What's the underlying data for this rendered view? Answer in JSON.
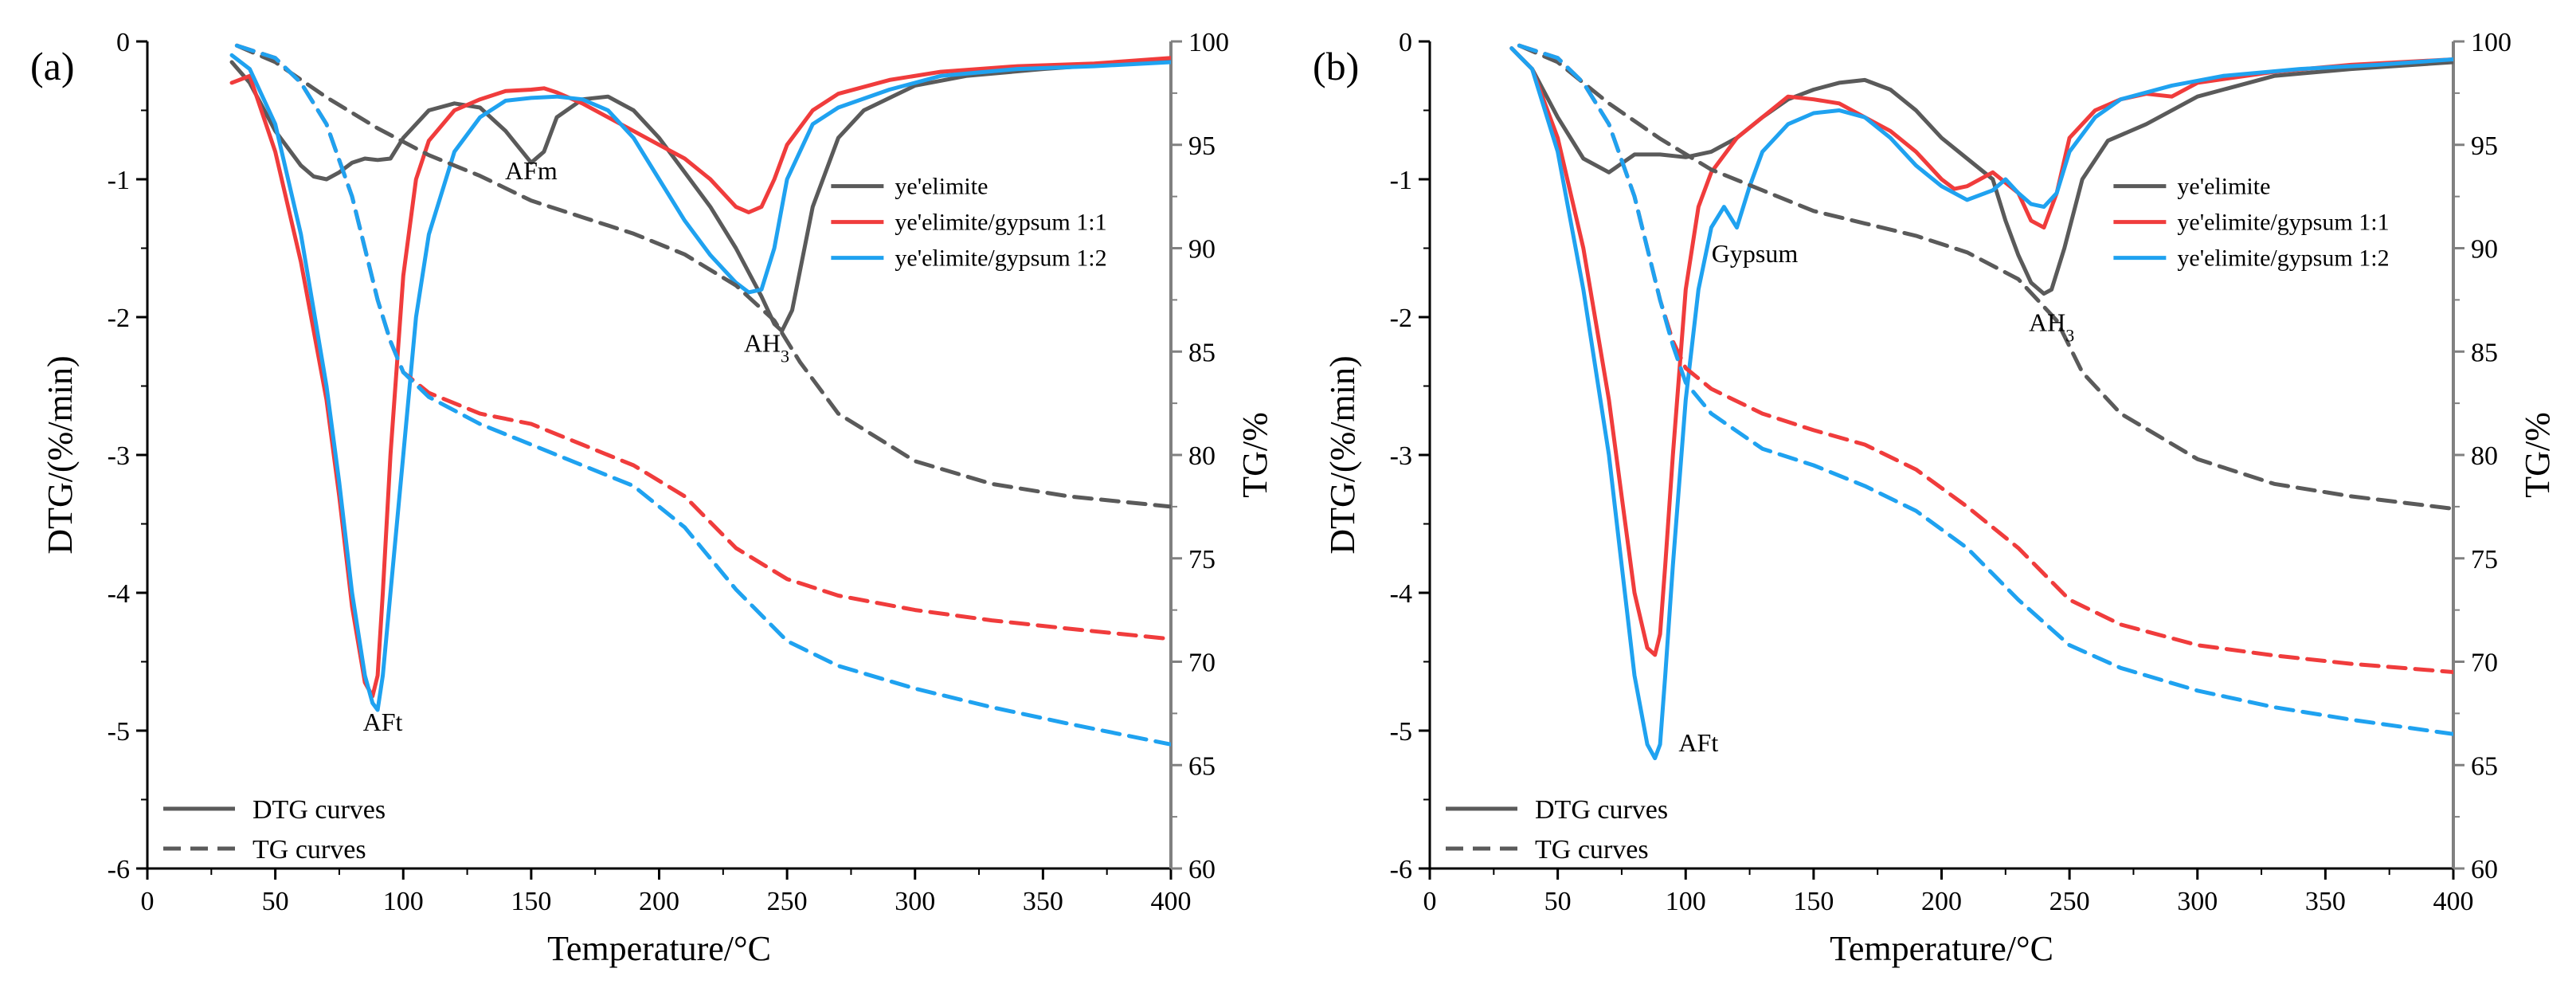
{
  "colors": {
    "ye": "#5a5a5a",
    "g11": "#f03c3c",
    "g12": "#1fa2f0"
  },
  "chart_data": [
    {
      "type": "line",
      "panel_label": "(a)",
      "xlabel": "Temperature/°C",
      "ylabel": "DTG/(%/min)",
      "y2label": "TG/%",
      "xlim": [
        0,
        400
      ],
      "ylim": [
        -6,
        0
      ],
      "y2lim": [
        60,
        100
      ],
      "xticks": [
        "0",
        "50",
        "100",
        "150",
        "200",
        "250",
        "300",
        "350",
        "400"
      ],
      "yticks": [
        "0",
        "-1",
        "-2",
        "-3",
        "-4",
        "-5",
        "-6"
      ],
      "y2ticks": [
        "100",
        "95",
        "90",
        "85",
        "80",
        "75",
        "70",
        "65",
        "60"
      ],
      "legend_series": [
        "ye'elimite",
        "ye'elimite/gypsum 1:1",
        "ye'elimite/gypsum 1:2"
      ],
      "legend_types": [
        "DTG curves",
        "TG curves"
      ],
      "annotations": [
        {
          "text": "AFt",
          "x": 92,
          "y": -5.0
        },
        {
          "text": "AFm",
          "x": 150,
          "y": -1.0
        },
        {
          "text": "AH",
          "sub": "3",
          "x": 242,
          "y": -2.25
        }
      ],
      "series": [
        {
          "name": "ye'elimite",
          "kind": "DTG",
          "axis": "left",
          "color_key": "ye",
          "x": [
            33,
            40,
            50,
            60,
            65,
            70,
            75,
            80,
            85,
            90,
            95,
            100,
            110,
            120,
            130,
            140,
            150,
            155,
            160,
            170,
            180,
            190,
            200,
            210,
            220,
            230,
            240,
            245,
            248,
            252,
            260,
            270,
            280,
            300,
            320,
            350,
            380,
            400
          ],
          "y": [
            -0.15,
            -0.3,
            -0.65,
            -0.9,
            -0.98,
            -1.0,
            -0.95,
            -0.88,
            -0.85,
            -0.86,
            -0.85,
            -0.7,
            -0.5,
            -0.45,
            -0.48,
            -0.65,
            -0.88,
            -0.8,
            -0.55,
            -0.42,
            -0.4,
            -0.5,
            -0.7,
            -0.95,
            -1.2,
            -1.5,
            -1.85,
            -2.05,
            -2.1,
            -1.95,
            -1.2,
            -0.7,
            -0.5,
            -0.32,
            -0.25,
            -0.2,
            -0.16,
            -0.13
          ]
        },
        {
          "name": "ye'elimite/gypsum 1:1",
          "kind": "DTG",
          "axis": "left",
          "color_key": "g11",
          "x": [
            33,
            40,
            50,
            60,
            70,
            75,
            80,
            85,
            88,
            90,
            92,
            95,
            100,
            105,
            110,
            120,
            130,
            140,
            150,
            155,
            160,
            170,
            180,
            190,
            200,
            210,
            220,
            230,
            235,
            240,
            245,
            250,
            260,
            270,
            290,
            310,
            340,
            370,
            400
          ],
          "y": [
            -0.3,
            -0.25,
            -0.8,
            -1.6,
            -2.6,
            -3.3,
            -4.1,
            -4.65,
            -4.75,
            -4.6,
            -4.0,
            -3.0,
            -1.7,
            -1.0,
            -0.72,
            -0.5,
            -0.42,
            -0.36,
            -0.35,
            -0.34,
            -0.37,
            -0.45,
            -0.55,
            -0.65,
            -0.75,
            -0.85,
            -1.0,
            -1.2,
            -1.24,
            -1.2,
            -1.0,
            -0.75,
            -0.5,
            -0.38,
            -0.28,
            -0.22,
            -0.18,
            -0.16,
            -0.12
          ]
        },
        {
          "name": "ye'elimite/gypsum 1:2",
          "kind": "DTG",
          "axis": "left",
          "color_key": "g12",
          "x": [
            33,
            40,
            50,
            60,
            70,
            75,
            80,
            85,
            88,
            90,
            92,
            95,
            100,
            105,
            110,
            120,
            130,
            140,
            150,
            160,
            170,
            180,
            190,
            200,
            210,
            220,
            230,
            235,
            240,
            245,
            250,
            260,
            270,
            290,
            310,
            340,
            370,
            400
          ],
          "y": [
            -0.1,
            -0.2,
            -0.6,
            -1.4,
            -2.5,
            -3.2,
            -4.0,
            -4.6,
            -4.8,
            -4.85,
            -4.6,
            -4.0,
            -3.0,
            -2.0,
            -1.4,
            -0.8,
            -0.55,
            -0.43,
            -0.41,
            -0.4,
            -0.42,
            -0.5,
            -0.7,
            -1.0,
            -1.3,
            -1.55,
            -1.75,
            -1.82,
            -1.8,
            -1.5,
            -1.0,
            -0.6,
            -0.48,
            -0.35,
            -0.25,
            -0.2,
            -0.18,
            -0.15
          ]
        },
        {
          "name": "ye'elimite",
          "kind": "TG",
          "axis": "right",
          "color_key": "ye",
          "x": [
            35,
            50,
            70,
            90,
            110,
            130,
            150,
            170,
            190,
            210,
            230,
            245,
            255,
            270,
            300,
            330,
            360,
            400
          ],
          "y": [
            99.8,
            99,
            97.3,
            95.8,
            94.5,
            93.5,
            92.3,
            91.5,
            90.7,
            89.7,
            88.2,
            86.5,
            84.5,
            82,
            79.7,
            78.6,
            78,
            77.5
          ]
        },
        {
          "name": "ye'elimite/gypsum 1:1",
          "kind": "TG",
          "axis": "right",
          "color_key": "g11",
          "x": [
            35,
            50,
            60,
            70,
            80,
            85,
            90,
            95,
            100,
            110,
            130,
            150,
            170,
            190,
            210,
            230,
            250,
            270,
            300,
            330,
            360,
            400
          ],
          "y": [
            99.8,
            99.2,
            98,
            96,
            92.5,
            90,
            87.5,
            85.5,
            84,
            83,
            82,
            81.5,
            80.5,
            79.5,
            78,
            75.5,
            74,
            73.2,
            72.5,
            72,
            71.6,
            71.1
          ]
        },
        {
          "name": "ye'elimite/gypsum 1:2",
          "kind": "TG",
          "axis": "right",
          "color_key": "g12",
          "x": [
            35,
            50,
            60,
            70,
            80,
            85,
            90,
            95,
            100,
            110,
            130,
            150,
            170,
            190,
            210,
            230,
            250,
            270,
            300,
            330,
            360,
            400
          ],
          "y": [
            99.8,
            99.2,
            98,
            96,
            92.5,
            90,
            87.5,
            85.5,
            84,
            82.8,
            81.5,
            80.5,
            79.5,
            78.5,
            76.5,
            73.5,
            71,
            69.8,
            68.7,
            67.8,
            67,
            66
          ]
        }
      ]
    },
    {
      "type": "line",
      "panel_label": "(b)",
      "xlabel": "Temperature/°C",
      "ylabel": "DTG/(%/min)",
      "y2label": "TG/%",
      "xlim": [
        0,
        400
      ],
      "ylim": [
        -6,
        0
      ],
      "y2lim": [
        60,
        100
      ],
      "xticks": [
        "0",
        "50",
        "100",
        "150",
        "200",
        "250",
        "300",
        "350",
        "400"
      ],
      "yticks": [
        "0",
        "-1",
        "-2",
        "-3",
        "-4",
        "-5",
        "-6"
      ],
      "y2ticks": [
        "100",
        "95",
        "90",
        "85",
        "80",
        "75",
        "70",
        "65",
        "60"
      ],
      "legend_series": [
        "ye'elimite",
        "ye'elimite/gypsum 1:1",
        "ye'elimite/gypsum 1:2"
      ],
      "legend_types": [
        "DTG curves",
        "TG curves"
      ],
      "annotations": [
        {
          "text": "AFt",
          "x": 105,
          "y": -5.15
        },
        {
          "text": "Gypsum",
          "x": 127,
          "y": -1.6
        },
        {
          "text": "AH",
          "sub": "3",
          "x": 243,
          "y": -2.1
        }
      ],
      "series": [
        {
          "name": "ye'elimite",
          "kind": "DTG",
          "axis": "left",
          "color_key": "ye",
          "x": [
            32,
            40,
            50,
            60,
            70,
            80,
            90,
            100,
            110,
            120,
            130,
            140,
            150,
            160,
            170,
            180,
            190,
            200,
            210,
            220,
            225,
            230,
            235,
            240,
            243,
            248,
            255,
            265,
            280,
            300,
            330,
            360,
            400
          ],
          "y": [
            -0.05,
            -0.2,
            -0.55,
            -0.85,
            -0.95,
            -0.82,
            -0.82,
            -0.84,
            -0.8,
            -0.7,
            -0.55,
            -0.42,
            -0.35,
            -0.3,
            -0.28,
            -0.35,
            -0.5,
            -0.7,
            -0.85,
            -1.0,
            -1.3,
            -1.55,
            -1.75,
            -1.83,
            -1.8,
            -1.5,
            -1.0,
            -0.72,
            -0.6,
            -0.4,
            -0.25,
            -0.2,
            -0.15
          ]
        },
        {
          "name": "ye'elimite/gypsum 1:1",
          "kind": "DTG",
          "axis": "left",
          "color_key": "g11",
          "x": [
            32,
            40,
            50,
            60,
            70,
            75,
            80,
            85,
            88,
            90,
            92,
            95,
            100,
            105,
            110,
            120,
            130,
            140,
            150,
            160,
            170,
            180,
            190,
            200,
            205,
            210,
            220,
            230,
            235,
            240,
            245,
            250,
            260,
            270,
            280,
            290,
            300,
            330,
            360,
            400
          ],
          "y": [
            -0.05,
            -0.2,
            -0.7,
            -1.5,
            -2.6,
            -3.3,
            -4.0,
            -4.4,
            -4.45,
            -4.3,
            -3.8,
            -3.0,
            -1.8,
            -1.2,
            -0.95,
            -0.7,
            -0.55,
            -0.4,
            -0.42,
            -0.45,
            -0.55,
            -0.65,
            -0.8,
            -1.0,
            -1.07,
            -1.05,
            -0.95,
            -1.1,
            -1.3,
            -1.35,
            -1.1,
            -0.7,
            -0.5,
            -0.42,
            -0.38,
            -0.4,
            -0.3,
            -0.22,
            -0.17,
            -0.13
          ]
        },
        {
          "name": "ye'elimite/gypsum 1:2",
          "kind": "DTG",
          "axis": "left",
          "color_key": "g12",
          "x": [
            32,
            40,
            50,
            60,
            70,
            75,
            80,
            85,
            88,
            90,
            92,
            95,
            100,
            105,
            110,
            115,
            120,
            125,
            130,
            140,
            150,
            160,
            170,
            180,
            190,
            200,
            210,
            220,
            225,
            230,
            235,
            240,
            245,
            250,
            260,
            270,
            290,
            310,
            340,
            370,
            400
          ],
          "y": [
            -0.05,
            -0.2,
            -0.8,
            -1.8,
            -3.0,
            -3.8,
            -4.6,
            -5.1,
            -5.2,
            -5.1,
            -4.6,
            -3.8,
            -2.6,
            -1.8,
            -1.35,
            -1.2,
            -1.35,
            -1.05,
            -0.8,
            -0.6,
            -0.52,
            -0.5,
            -0.55,
            -0.7,
            -0.9,
            -1.05,
            -1.15,
            -1.08,
            -1.0,
            -1.1,
            -1.18,
            -1.2,
            -1.1,
            -0.8,
            -0.55,
            -0.42,
            -0.32,
            -0.25,
            -0.2,
            -0.17,
            -0.13
          ]
        },
        {
          "name": "ye'elimite",
          "kind": "TG",
          "axis": "right",
          "color_key": "ye",
          "x": [
            35,
            50,
            70,
            90,
            110,
            130,
            150,
            170,
            190,
            210,
            230,
            245,
            255,
            270,
            300,
            330,
            360,
            400
          ],
          "y": [
            99.8,
            99,
            97,
            95.3,
            93.8,
            92.8,
            91.8,
            91.2,
            90.6,
            89.8,
            88.5,
            86.5,
            84,
            82,
            79.8,
            78.6,
            78,
            77.4
          ]
        },
        {
          "name": "ye'elimite/gypsum 1:1",
          "kind": "TG",
          "axis": "right",
          "color_key": "g11",
          "x": [
            35,
            50,
            60,
            70,
            80,
            85,
            90,
            95,
            100,
            110,
            130,
            150,
            170,
            190,
            210,
            230,
            250,
            270,
            300,
            330,
            360,
            400
          ],
          "y": [
            99.8,
            99.2,
            98,
            96,
            92.5,
            90,
            87.5,
            85.5,
            84.2,
            83.2,
            82,
            81.2,
            80.5,
            79.3,
            77.5,
            75.5,
            73,
            71.8,
            70.8,
            70.3,
            69.9,
            69.5
          ]
        },
        {
          "name": "ye'elimite/gypsum 1:2",
          "kind": "TG",
          "axis": "right",
          "color_key": "g12",
          "x": [
            35,
            50,
            60,
            70,
            80,
            85,
            90,
            95,
            100,
            110,
            130,
            150,
            170,
            190,
            210,
            230,
            250,
            270,
            300,
            330,
            360,
            400
          ],
          "y": [
            99.8,
            99.2,
            98,
            96,
            92.5,
            90,
            87.5,
            85.3,
            83.5,
            82,
            80.3,
            79.5,
            78.5,
            77.3,
            75.5,
            73,
            70.8,
            69.7,
            68.6,
            67.8,
            67.2,
            66.5
          ]
        }
      ]
    }
  ]
}
